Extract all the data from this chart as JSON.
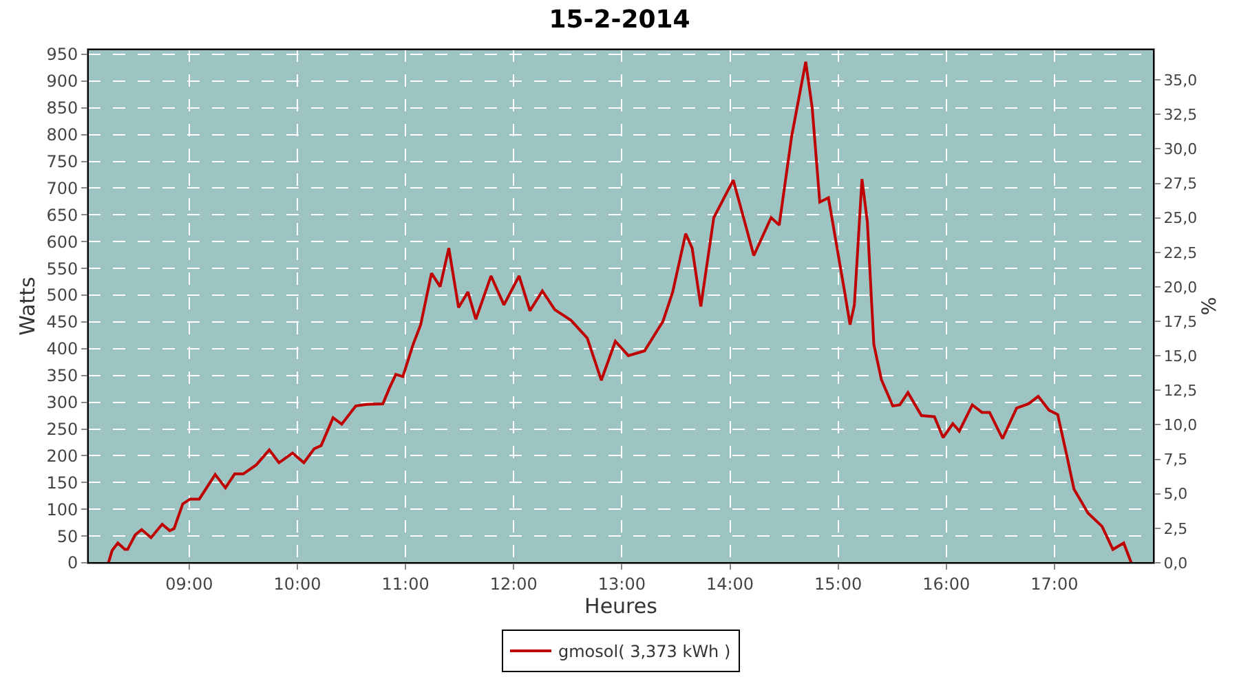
{
  "chart_data": {
    "type": "line",
    "title": "15-2-2014",
    "xlabel": "Heures",
    "ylabel": "Watts",
    "y2label": "%",
    "x": [
      8.253,
      8.287,
      8.34,
      8.405,
      8.43,
      8.5,
      8.56,
      8.647,
      8.75,
      8.82,
      8.86,
      8.94,
      9.008,
      9.093,
      9.24,
      9.335,
      9.42,
      9.5,
      9.62,
      9.74,
      9.83,
      9.955,
      10.06,
      10.155,
      10.22,
      10.33,
      10.41,
      10.54,
      10.64,
      10.79,
      10.85,
      10.91,
      10.975,
      11.07,
      11.14,
      11.24,
      11.32,
      11.4,
      11.49,
      11.577,
      11.65,
      11.79,
      11.91,
      12.05,
      12.15,
      12.265,
      12.38,
      12.53,
      12.68,
      12.81,
      12.94,
      13.06,
      13.21,
      13.38,
      13.47,
      13.59,
      13.65,
      13.73,
      13.85,
      14.03,
      14.125,
      14.22,
      14.38,
      14.455,
      14.57,
      14.7,
      14.76,
      14.83,
      14.91,
      15.06,
      15.11,
      15.15,
      15.22,
      15.27,
      15.33,
      15.4,
      15.505,
      15.57,
      15.645,
      15.77,
      15.89,
      15.97,
      16.06,
      16.12,
      16.24,
      16.33,
      16.4,
      16.52,
      16.65,
      16.76,
      16.85,
      16.95,
      17.03,
      17.12,
      17.18,
      17.31,
      17.44,
      17.54,
      17.64,
      17.71
    ],
    "series": [
      {
        "name": "gmosol( 3,373 kWh )",
        "color": "#bf0000",
        "values": [
          0,
          23,
          37,
          25,
          25,
          52,
          62,
          47,
          72,
          60,
          64,
          110,
          119,
          119,
          165,
          140,
          166,
          166,
          183,
          211,
          187,
          205,
          187,
          213,
          219,
          271,
          259,
          293,
          296,
          297,
          326,
          352,
          348,
          408,
          445,
          541,
          516,
          588,
          477,
          506,
          455,
          536,
          482,
          536,
          471,
          508,
          473,
          453,
          420,
          341,
          414,
          387,
          396,
          451,
          506,
          615,
          588,
          479,
          645,
          715,
          645,
          574,
          645,
          631,
          797,
          936,
          850,
          674,
          682,
          506,
          445,
          482,
          717,
          637,
          408,
          342,
          293,
          295,
          318,
          275,
          273,
          234,
          260,
          246,
          295,
          281,
          281,
          232,
          289,
          297,
          311,
          285,
          277,
          195,
          138,
          93,
          68,
          25,
          37,
          0
        ]
      }
    ],
    "xlim": [
      8.065,
      17.917
    ],
    "xticks": [
      {
        "value": 9,
        "label": "09:00"
      },
      {
        "value": 10,
        "label": "10:00"
      },
      {
        "value": 11,
        "label": "11:00"
      },
      {
        "value": 12,
        "label": "12:00"
      },
      {
        "value": 13,
        "label": "13:00"
      },
      {
        "value": 14,
        "label": "14:00"
      },
      {
        "value": 15,
        "label": "15:00"
      },
      {
        "value": 16,
        "label": "16:00"
      },
      {
        "value": 17,
        "label": "17:00"
      }
    ],
    "ylim": [
      0,
      959
    ],
    "yticks": [
      0,
      50,
      100,
      150,
      200,
      250,
      300,
      350,
      400,
      450,
      500,
      550,
      600,
      650,
      700,
      750,
      800,
      850,
      900,
      950
    ],
    "y2lim": [
      0,
      37.2
    ],
    "y2ticks": [
      {
        "value": 0,
        "label": "0,0"
      },
      {
        "value": 2.5,
        "label": "2,5"
      },
      {
        "value": 5,
        "label": "5,0"
      },
      {
        "value": 7.5,
        "label": "7,5"
      },
      {
        "value": 10,
        "label": "10,0"
      },
      {
        "value": 12.5,
        "label": "12,5"
      },
      {
        "value": 15,
        "label": "15,0"
      },
      {
        "value": 17.5,
        "label": "17,5"
      },
      {
        "value": 20,
        "label": "20,0"
      },
      {
        "value": 22.5,
        "label": "22,5"
      },
      {
        "value": 25,
        "label": "25,0"
      },
      {
        "value": 27.5,
        "label": "27,5"
      },
      {
        "value": 30,
        "label": "30,0"
      },
      {
        "value": 32.5,
        "label": "32,5"
      },
      {
        "value": 35,
        "label": "35,0"
      }
    ],
    "grid": true,
    "legend": "bottom",
    "marker": "none",
    "line_style": "solid"
  }
}
